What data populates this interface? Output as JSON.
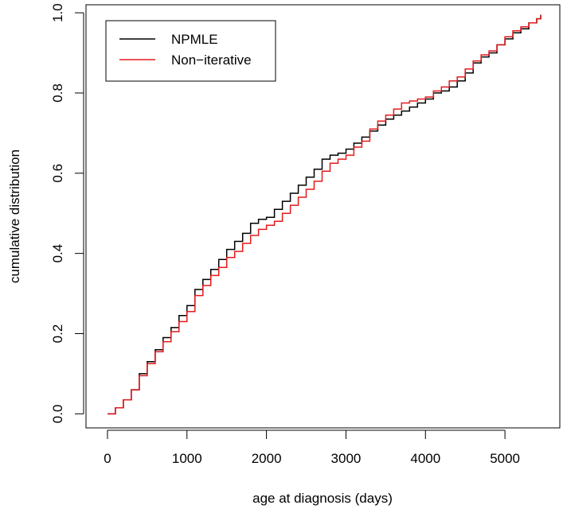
{
  "chart_data": {
    "type": "line",
    "title": "",
    "xlabel": "age at diagnosis (days)",
    "ylabel": "cumulative distribution",
    "xlim": [
      -270,
      5690
    ],
    "ylim": [
      -0.035,
      1.02
    ],
    "xticks": [
      0,
      1000,
      2000,
      3000,
      4000,
      5000
    ],
    "yticks": [
      0.0,
      0.2,
      0.4,
      0.6,
      0.8,
      1.0
    ],
    "xtick_labels": [
      "0",
      "1000",
      "2000",
      "3000",
      "4000",
      "5000"
    ],
    "ytick_labels": [
      "0.0",
      "0.2",
      "0.4",
      "0.6",
      "0.8",
      "1.0"
    ],
    "grid": false,
    "legend_position": "top-left",
    "series": [
      {
        "name": "NPMLE",
        "color": "#000000",
        "x": [
          0,
          100,
          200,
          300,
          400,
          500,
          600,
          700,
          800,
          900,
          1000,
          1100,
          1200,
          1300,
          1400,
          1500,
          1600,
          1700,
          1800,
          1900,
          2000,
          2100,
          2200,
          2300,
          2400,
          2500,
          2600,
          2700,
          2800,
          2900,
          3000,
          3100,
          3200,
          3300,
          3400,
          3500,
          3600,
          3700,
          3800,
          3900,
          4000,
          4100,
          4200,
          4300,
          4400,
          4500,
          4600,
          4700,
          4800,
          4900,
          5000,
          5100,
          5200,
          5300,
          5400,
          5450
        ],
        "y": [
          0.0,
          0.015,
          0.035,
          0.06,
          0.1,
          0.13,
          0.16,
          0.19,
          0.215,
          0.245,
          0.27,
          0.31,
          0.335,
          0.36,
          0.385,
          0.41,
          0.43,
          0.45,
          0.475,
          0.485,
          0.49,
          0.51,
          0.53,
          0.55,
          0.57,
          0.59,
          0.61,
          0.635,
          0.645,
          0.65,
          0.66,
          0.675,
          0.69,
          0.705,
          0.72,
          0.735,
          0.745,
          0.755,
          0.765,
          0.775,
          0.785,
          0.8,
          0.805,
          0.815,
          0.83,
          0.85,
          0.875,
          0.89,
          0.9,
          0.92,
          0.935,
          0.95,
          0.96,
          0.975,
          0.985,
          0.995
        ]
      },
      {
        "name": "Non−iterative",
        "color": "#e31a1c",
        "x": [
          0,
          100,
          200,
          300,
          400,
          500,
          600,
          700,
          800,
          900,
          1000,
          1100,
          1200,
          1300,
          1400,
          1500,
          1600,
          1700,
          1800,
          1900,
          2000,
          2100,
          2200,
          2300,
          2400,
          2500,
          2600,
          2700,
          2800,
          2900,
          3000,
          3100,
          3200,
          3300,
          3400,
          3500,
          3600,
          3700,
          3800,
          3900,
          4000,
          4100,
          4200,
          4300,
          4400,
          4500,
          4600,
          4700,
          4800,
          4900,
          5000,
          5100,
          5200,
          5300,
          5400,
          5450
        ],
        "y": [
          0.0,
          0.015,
          0.035,
          0.06,
          0.095,
          0.125,
          0.155,
          0.18,
          0.205,
          0.23,
          0.255,
          0.295,
          0.32,
          0.345,
          0.365,
          0.39,
          0.405,
          0.425,
          0.445,
          0.46,
          0.47,
          0.48,
          0.5,
          0.52,
          0.54,
          0.56,
          0.58,
          0.605,
          0.625,
          0.635,
          0.645,
          0.665,
          0.68,
          0.71,
          0.73,
          0.745,
          0.76,
          0.775,
          0.78,
          0.785,
          0.79,
          0.805,
          0.815,
          0.83,
          0.84,
          0.86,
          0.88,
          0.895,
          0.905,
          0.92,
          0.94,
          0.955,
          0.965,
          0.975,
          0.985,
          0.995
        ]
      }
    ]
  }
}
